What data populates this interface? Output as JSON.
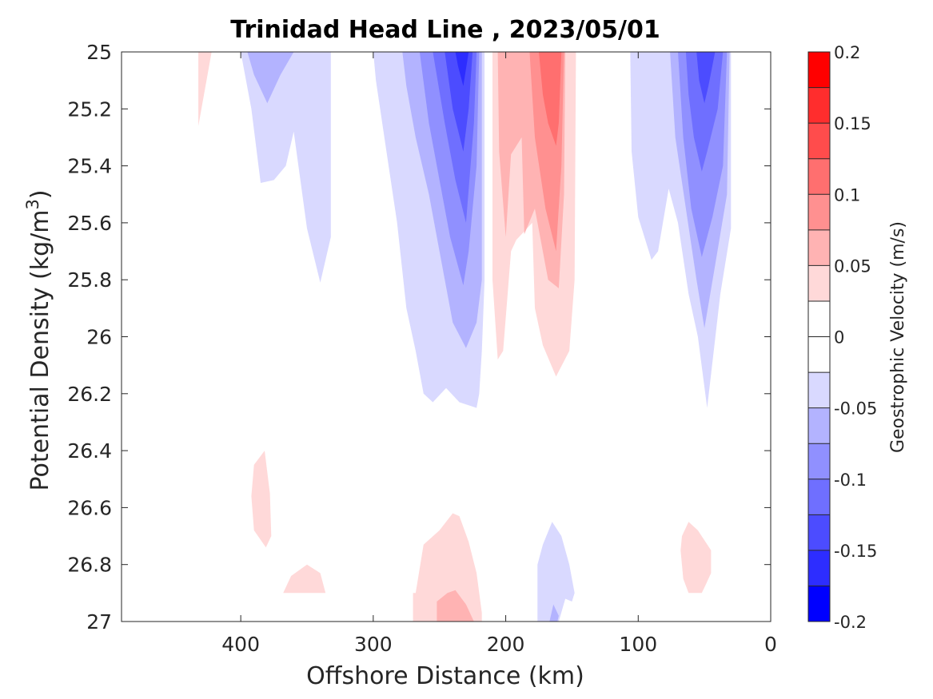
{
  "chart_data": {
    "type": "contourf",
    "title": "Trinidad Head Line , 2023/05/01",
    "xlabel": "Offshore Distance (km)",
    "ylabel": "Potential Density (kg/m",
    "ylabel_superscript": "3",
    "ylabel_close": ")",
    "colorbar_label": "Geostrophic Velocity (m/s)",
    "xlim": [
      490,
      0
    ],
    "x_reversed": true,
    "ylim": [
      25,
      27
    ],
    "y_reversed": true,
    "x_ticks": [
      400,
      300,
      200,
      100,
      0
    ],
    "x_tick_labels": [
      "400",
      "300",
      "200",
      "100",
      "0"
    ],
    "y_ticks": [
      25,
      25.2,
      25.4,
      25.6,
      25.8,
      26,
      26.2,
      26.4,
      26.6,
      26.8,
      27
    ],
    "y_tick_labels": [
      "25",
      "25.2",
      "25.4",
      "25.6",
      "25.8",
      "26",
      "26.2",
      "26.4",
      "26.6",
      "26.8",
      "27"
    ],
    "colorbar": {
      "range": [
        -0.2,
        0.2
      ],
      "ticks": [
        0.2,
        0.15,
        0.1,
        0.05,
        0,
        -0.05,
        -0.1,
        -0.15,
        -0.2
      ],
      "tick_labels": [
        "0.2",
        "0.15",
        "0.1",
        "0.05",
        "0",
        "-0.05",
        "-0.1",
        "-0.15",
        "-0.2"
      ],
      "levels": [
        {
          "from": 0.175,
          "to": 0.2,
          "color": "#ff0000"
        },
        {
          "from": 0.15,
          "to": 0.175,
          "color": "#ff2d2d"
        },
        {
          "from": 0.125,
          "to": 0.15,
          "color": "#ff4c4c"
        },
        {
          "from": 0.1,
          "to": 0.125,
          "color": "#ff6f6f"
        },
        {
          "from": 0.075,
          "to": 0.1,
          "color": "#ff9090"
        },
        {
          "from": 0.05,
          "to": 0.075,
          "color": "#ffb3b3"
        },
        {
          "from": 0.025,
          "to": 0.05,
          "color": "#ffd9d9"
        },
        {
          "from": 0.0,
          "to": 0.025,
          "color": "#ffffff"
        },
        {
          "from": -0.025,
          "to": 0.0,
          "color": "#ffffff"
        },
        {
          "from": -0.05,
          "to": -0.025,
          "color": "#d9d9ff"
        },
        {
          "from": -0.075,
          "to": -0.05,
          "color": "#b3b3ff"
        },
        {
          "from": -0.1,
          "to": -0.075,
          "color": "#9090ff"
        },
        {
          "from": -0.125,
          "to": -0.1,
          "color": "#6f6fff"
        },
        {
          "from": -0.15,
          "to": -0.125,
          "color": "#4c4cff"
        },
        {
          "from": -0.175,
          "to": -0.15,
          "color": "#2d2dff"
        },
        {
          "from": -0.2,
          "to": -0.175,
          "color": "#0000ff"
        }
      ]
    },
    "contours": [
      {
        "name": "pos-level1-far-offshore-sliver",
        "level": 1,
        "color": "#ffd9d9",
        "points": [
          [
            432,
            25
          ],
          [
            422,
            25
          ],
          [
            432,
            25.26
          ]
        ]
      },
      {
        "name": "neg-level1-offshore-a",
        "level": -1,
        "color": "#d9d9ff",
        "points": [
          [
            400,
            25
          ],
          [
            332,
            25
          ],
          [
            332,
            25.65
          ],
          [
            340,
            25.81
          ],
          [
            350,
            25.62
          ],
          [
            360,
            25.28
          ],
          [
            366,
            25.4
          ],
          [
            375,
            25.45
          ],
          [
            385,
            25.46
          ],
          [
            392,
            25.2
          ]
        ]
      },
      {
        "name": "neg-level2-offshore-a",
        "level": -2,
        "color": "#b3b3ff",
        "points": [
          [
            395,
            25
          ],
          [
            360,
            25
          ],
          [
            370,
            25.08
          ],
          [
            380,
            25.18
          ],
          [
            390,
            25.08
          ]
        ]
      },
      {
        "name": "neg-level1-main-jet-230",
        "level": -1,
        "color": "#d9d9ff",
        "points": [
          [
            300,
            25
          ],
          [
            216,
            25
          ],
          [
            216,
            25.8
          ],
          [
            218,
            26.05
          ],
          [
            220,
            26.2
          ],
          [
            222,
            26.25
          ],
          [
            235,
            26.23
          ],
          [
            245,
            26.18
          ],
          [
            255,
            26.23
          ],
          [
            262,
            26.2
          ],
          [
            268,
            26.05
          ],
          [
            275,
            25.9
          ],
          [
            282,
            25.6
          ],
          [
            290,
            25.35
          ],
          [
            298,
            25.1
          ]
        ]
      },
      {
        "name": "neg-level2-main-jet-230",
        "level": -2,
        "color": "#b3b3ff",
        "points": [
          [
            278,
            25
          ],
          [
            218,
            25
          ],
          [
            218,
            25.8
          ],
          [
            222,
            25.95
          ],
          [
            230,
            26.04
          ],
          [
            240,
            25.95
          ],
          [
            250,
            25.7
          ],
          [
            258,
            25.5
          ],
          [
            268,
            25.3
          ],
          [
            275,
            25.12
          ]
        ]
      },
      {
        "name": "neg-level3-main-jet-230",
        "level": -3,
        "color": "#9090ff",
        "points": [
          [
            265,
            25
          ],
          [
            220,
            25
          ],
          [
            222,
            25.4
          ],
          [
            228,
            25.7
          ],
          [
            232,
            25.82
          ],
          [
            242,
            25.65
          ],
          [
            250,
            25.45
          ],
          [
            258,
            25.25
          ]
        ]
      },
      {
        "name": "neg-level4-main-jet-230",
        "level": -4,
        "color": "#6f6fff",
        "points": [
          [
            255,
            25
          ],
          [
            222,
            25
          ],
          [
            224,
            25.25
          ],
          [
            230,
            25.6
          ],
          [
            238,
            25.45
          ],
          [
            246,
            25.25
          ]
        ]
      },
      {
        "name": "neg-level5-main-jet-230",
        "level": -5,
        "color": "#4c4cff",
        "points": [
          [
            246,
            25
          ],
          [
            225,
            25
          ],
          [
            228,
            25.2
          ],
          [
            232,
            25.35
          ],
          [
            240,
            25.2
          ]
        ]
      },
      {
        "name": "neg-level6-main-jet-230",
        "level": -6,
        "color": "#2d2dff",
        "points": [
          [
            238,
            25
          ],
          [
            228,
            25
          ],
          [
            232,
            25.12
          ],
          [
            236,
            25.05
          ]
        ]
      },
      {
        "name": "pos-level1-inshore-jet-160",
        "level": 1,
        "color": "#ffd9d9",
        "points": [
          [
            210,
            25
          ],
          [
            147,
            25
          ],
          [
            148,
            25.8
          ],
          [
            152,
            26.05
          ],
          [
            162,
            26.14
          ],
          [
            172,
            26.03
          ],
          [
            178,
            25.9
          ],
          [
            180,
            25.6
          ],
          [
            186,
            25.63
          ],
          [
            192,
            25.66
          ],
          [
            196,
            25.7
          ],
          [
            202,
            26.05
          ],
          [
            206,
            26.08
          ],
          [
            210,
            25.8
          ]
        ]
      },
      {
        "name": "pos-level2-inshore-jet-160",
        "level": 2,
        "color": "#ffb3b3",
        "points": [
          [
            206,
            25
          ],
          [
            155,
            25
          ],
          [
            156,
            25.5
          ],
          [
            160,
            25.83
          ],
          [
            168,
            25.8
          ],
          [
            178,
            25.55
          ],
          [
            186,
            25.64
          ],
          [
            188,
            25.3
          ],
          [
            196,
            25.36
          ],
          [
            200,
            25.65
          ],
          [
            205,
            25.35
          ]
        ]
      },
      {
        "name": "pos-level3-inshore-jet-160",
        "level": 3,
        "color": "#ff9090",
        "points": [
          [
            182,
            25
          ],
          [
            156,
            25
          ],
          [
            158,
            25.4
          ],
          [
            162,
            25.7
          ],
          [
            170,
            25.55
          ],
          [
            178,
            25.3
          ]
        ]
      },
      {
        "name": "pos-level4-inshore-jet-160",
        "level": 4,
        "color": "#ff6f6f",
        "points": [
          [
            175,
            25
          ],
          [
            158,
            25
          ],
          [
            160,
            25.25
          ],
          [
            162,
            25.33
          ],
          [
            168,
            25.25
          ],
          [
            172,
            25.15
          ]
        ]
      },
      {
        "name": "neg-level1-coastal-jet-50",
        "level": -1,
        "color": "#d9d9ff",
        "points": [
          [
            106,
            25
          ],
          [
            30,
            25
          ],
          [
            30,
            25.62
          ],
          [
            38,
            25.85
          ],
          [
            48,
            26.25
          ],
          [
            55,
            26.0
          ],
          [
            62,
            25.85
          ],
          [
            70,
            25.6
          ],
          [
            77,
            25.48
          ],
          [
            85,
            25.7
          ],
          [
            90,
            25.73
          ],
          [
            100,
            25.58
          ],
          [
            105,
            25.35
          ]
        ]
      },
      {
        "name": "neg-level2-coastal-jet-50",
        "level": -2,
        "color": "#b3b3ff",
        "points": [
          [
            76,
            25
          ],
          [
            31,
            25
          ],
          [
            33,
            25.5
          ],
          [
            42,
            25.75
          ],
          [
            50,
            25.97
          ],
          [
            56,
            25.8
          ],
          [
            64,
            25.55
          ],
          [
            72,
            25.3
          ]
        ]
      },
      {
        "name": "neg-level3-coastal-jet-50",
        "level": -3,
        "color": "#9090ff",
        "points": [
          [
            70,
            25
          ],
          [
            33,
            25
          ],
          [
            36,
            25.4
          ],
          [
            44,
            25.58
          ],
          [
            52,
            25.72
          ],
          [
            60,
            25.55
          ],
          [
            66,
            25.3
          ]
        ]
      },
      {
        "name": "neg-level4-coastal-jet-50",
        "level": -4,
        "color": "#6f6fff",
        "points": [
          [
            64,
            25
          ],
          [
            36,
            25
          ],
          [
            40,
            25.2
          ],
          [
            48,
            25.35
          ],
          [
            52,
            25.42
          ],
          [
            58,
            25.3
          ],
          [
            62,
            25.15
          ]
        ]
      },
      {
        "name": "neg-level5-coastal-jet-50",
        "level": -5,
        "color": "#4c4cff",
        "points": [
          [
            56,
            25
          ],
          [
            42,
            25
          ],
          [
            47,
            25.12
          ],
          [
            50,
            25.18
          ],
          [
            54,
            25.1
          ]
        ]
      },
      {
        "name": "pos-level1-deep-patch-380",
        "level": 1,
        "color": "#ffd9d9",
        "points": [
          [
            390,
            26.45
          ],
          [
            382,
            26.4
          ],
          [
            378,
            26.55
          ],
          [
            377,
            26.7
          ],
          [
            381,
            26.74
          ],
          [
            390,
            26.68
          ],
          [
            392,
            26.56
          ]
        ]
      },
      {
        "name": "pos-level1-deep-patch-355",
        "level": 1,
        "color": "#ffd9d9",
        "points": [
          [
            368,
            26.9
          ],
          [
            362,
            26.84
          ],
          [
            350,
            26.8
          ],
          [
            340,
            26.83
          ],
          [
            336,
            26.9
          ]
        ]
      },
      {
        "name": "pos-level1-deep-patch-240",
        "level": 1,
        "color": "#ffd9d9",
        "points": [
          [
            268,
            26.9
          ],
          [
            262,
            26.73
          ],
          [
            250,
            26.68
          ],
          [
            240,
            26.62
          ],
          [
            235,
            26.63
          ],
          [
            228,
            26.72
          ],
          [
            222,
            26.83
          ],
          [
            218,
            26.97
          ],
          [
            218,
            27
          ],
          [
            270,
            27
          ],
          [
            270,
            26.9
          ]
        ]
      },
      {
        "name": "pos-level2-deep-patch-240",
        "level": 2,
        "color": "#ffb3b3",
        "points": [
          [
            252,
            26.93
          ],
          [
            244,
            26.9
          ],
          [
            238,
            26.89
          ],
          [
            230,
            26.94
          ],
          [
            226,
            26.98
          ],
          [
            224,
            27
          ],
          [
            252,
            27
          ]
        ]
      },
      {
        "name": "neg-level1-deep-patch-165",
        "level": -1,
        "color": "#d9d9ff",
        "points": [
          [
            176,
            27
          ],
          [
            176,
            26.8
          ],
          [
            172,
            26.73
          ],
          [
            165,
            26.65
          ],
          [
            158,
            26.7
          ],
          [
            152,
            26.8
          ],
          [
            148,
            26.9
          ],
          [
            150,
            26.93
          ],
          [
            155,
            26.92
          ],
          [
            160,
            27
          ]
        ]
      },
      {
        "name": "neg-level2-deep-patch-165",
        "level": -2,
        "color": "#b3b3ff",
        "points": [
          [
            167,
            27
          ],
          [
            164,
            26.94
          ],
          [
            160,
            26.98
          ],
          [
            161,
            27
          ]
        ]
      },
      {
        "name": "pos-level1-deep-patch-60",
        "level": 1,
        "color": "#ffd9d9",
        "points": [
          [
            67,
            26.7
          ],
          [
            62,
            26.65
          ],
          [
            55,
            26.68
          ],
          [
            45,
            26.75
          ],
          [
            45,
            26.83
          ],
          [
            49,
            26.87
          ],
          [
            52,
            26.9
          ],
          [
            62,
            26.9
          ],
          [
            66,
            26.85
          ],
          [
            68,
            26.75
          ]
        ]
      }
    ]
  }
}
